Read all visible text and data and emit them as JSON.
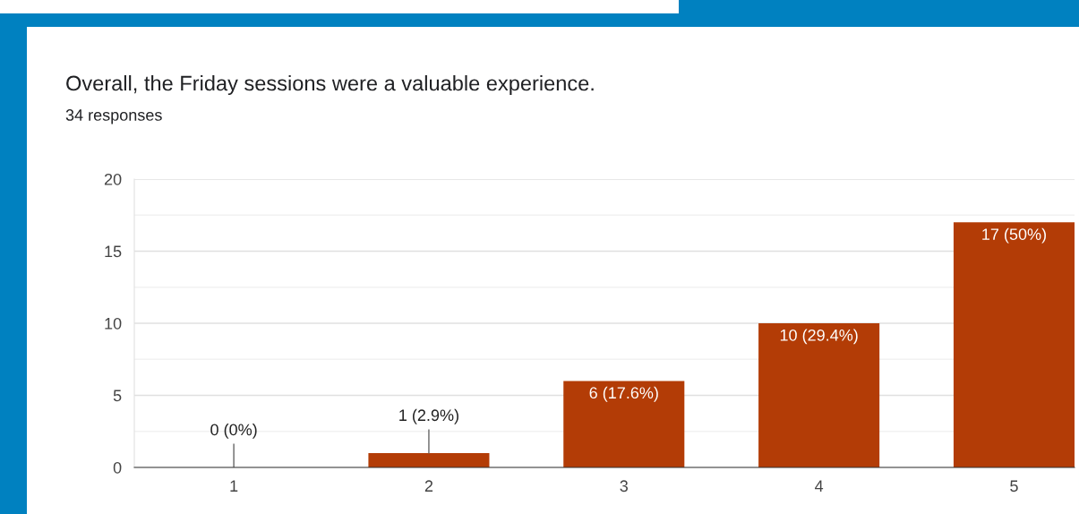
{
  "chart_data": {
    "type": "bar",
    "title": "Overall, the Friday sessions were a valuable experience.",
    "subtitle": "34 responses",
    "categories": [
      "1",
      "2",
      "3",
      "4",
      "5"
    ],
    "values": [
      0,
      1,
      6,
      10,
      17
    ],
    "value_labels": [
      "0 (0%)",
      "1 (2.9%)",
      "6 (17.6%)",
      "10 (29.4%)",
      "17 (50%)"
    ],
    "color": "#b33c06",
    "ylim": [
      0,
      20
    ],
    "yticks": [
      0,
      {
        "value": 2.5,
        "label": null
      },
      5,
      {
        "value": 7.5,
        "label": null
      },
      10,
      {
        "value": 12.5,
        "label": null
      },
      15,
      {
        "value": 17.5,
        "label": null
      },
      20
    ],
    "grid": "y"
  }
}
